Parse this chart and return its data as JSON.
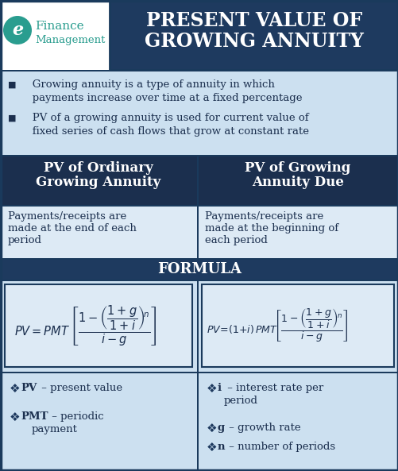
{
  "dark_blue": "#1b2f4e",
  "medium_blue": "#1e3a5f",
  "light_blue": "#cce0f0",
  "very_light_blue": "#ddeaf5",
  "white": "#ffffff",
  "teal": "#2a9d8f",
  "border_color": "#1a3a5c",
  "title_line1": "PRESENT VALUE OF",
  "title_line2": "GROWING ANNUITY",
  "bullet1_line1": "   Growing annuity is a type of annuity in which",
  "bullet1_line2": "   payments increase over time at a fixed percentage",
  "bullet2_line1": "   PV of a growing annuity is used for current value of",
  "bullet2_line2": "   fixed series of cash flows that grow at constant rate",
  "col1_header_line1": "PV of Ordinary",
  "col1_header_line2": "Growing Annuity",
  "col2_header_line1": "PV of Growing",
  "col2_header_line2": "Annuity Due",
  "col1_desc": "Payments/receipts are\nmade at the end of each\nperiod",
  "col2_desc": "Payments/receipts are\nmade at the beginning of\neach period",
  "formula_label": "FORMULA",
  "fig_width": 5.02,
  "fig_height": 5.93,
  "dpi": 100
}
